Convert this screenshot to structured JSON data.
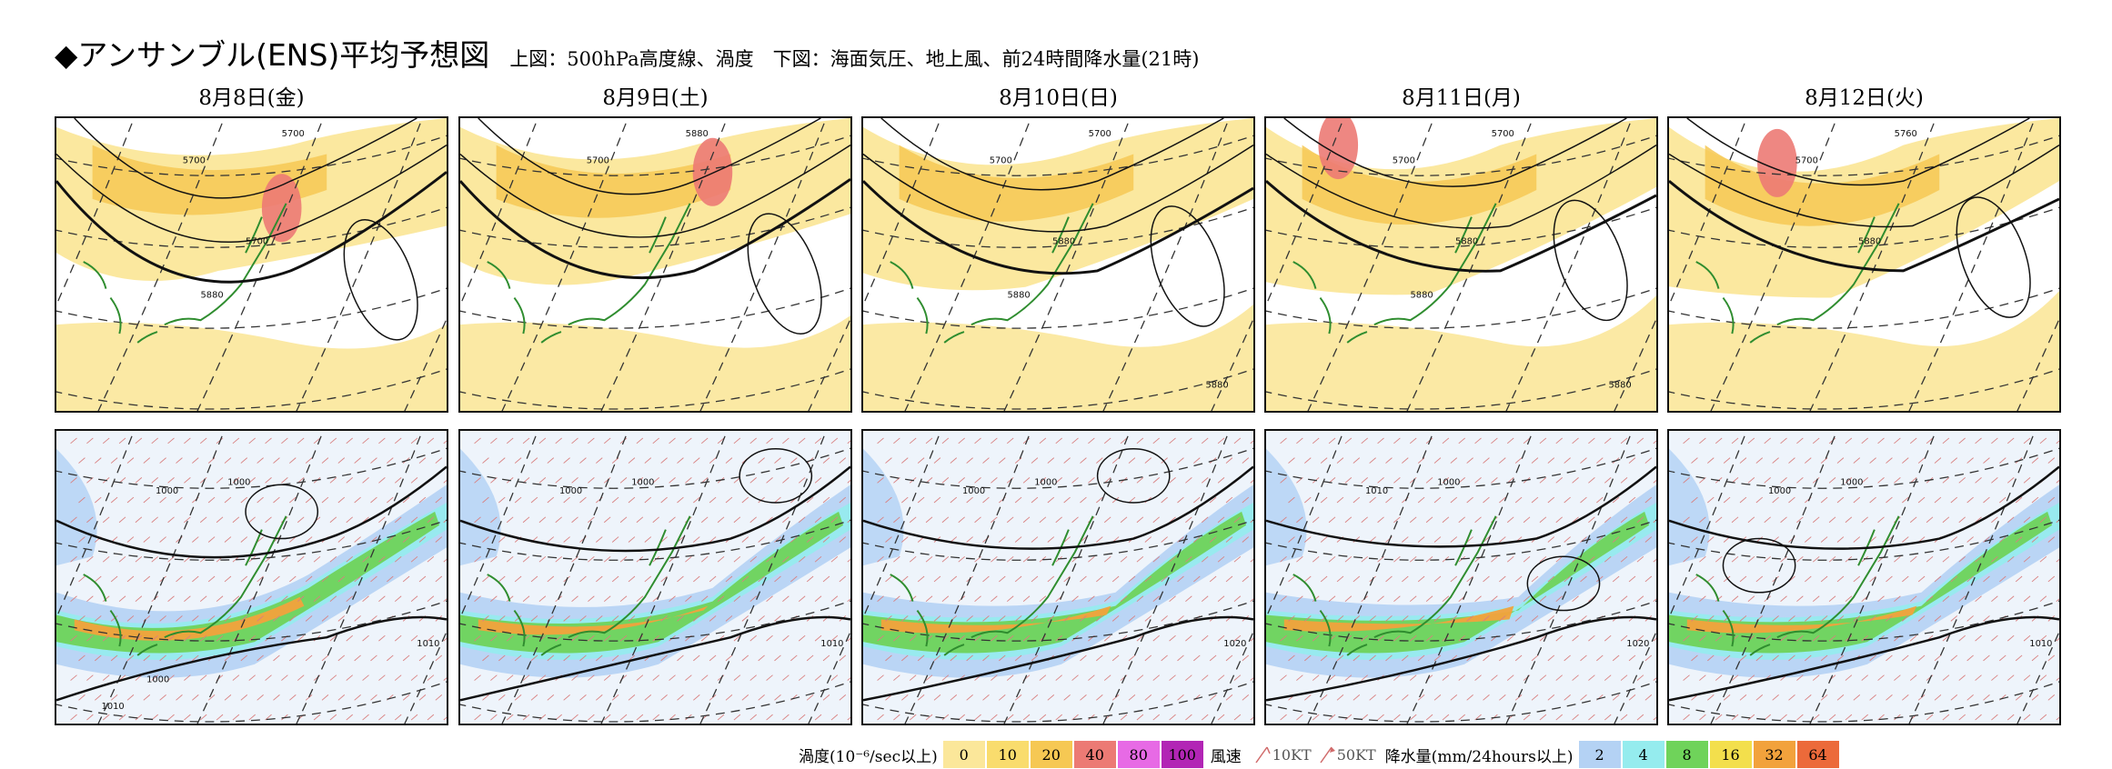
{
  "header": {
    "title": "◆アンサンブル(ENS)平均予想図",
    "subtitle": "上図：500hPa高度線、渦度　下図：海面気圧、地上風、前24時間降水量(21時)"
  },
  "panels": [
    {
      "date": "8月8日(金)",
      "upper_contours": [
        "5700",
        "5700",
        "5700",
        "5880"
      ],
      "lower_isobars": [
        "1000",
        "1000",
        "1010",
        "1000",
        "1010"
      ]
    },
    {
      "date": "8月9日(土)",
      "upper_contours": [
        "5700",
        "5880"
      ],
      "lower_isobars": [
        "1000",
        "1000",
        "1010"
      ]
    },
    {
      "date": "8月10日(日)",
      "upper_contours": [
        "5700",
        "5700",
        "5880",
        "5880",
        "5880"
      ],
      "lower_isobars": [
        "1000",
        "1000",
        "1020"
      ]
    },
    {
      "date": "8月11日(月)",
      "upper_contours": [
        "5700",
        "5700",
        "5880",
        "5880",
        "5880"
      ],
      "lower_isobars": [
        "1010",
        "1000",
        "1020"
      ]
    },
    {
      "date": "8月12日(火)",
      "upper_contours": [
        "5700",
        "5760",
        "5880"
      ],
      "lower_isobars": [
        "1000",
        "1000",
        "1010"
      ]
    }
  ],
  "legend": {
    "vorticity_label": "渦度(10⁻⁶/sec以上)",
    "vorticity": [
      {
        "value": "0",
        "color": "#fbe79a"
      },
      {
        "value": "10",
        "color": "#f9dc6d"
      },
      {
        "value": "20",
        "color": "#f6c853"
      },
      {
        "value": "40",
        "color": "#ec7a74"
      },
      {
        "value": "80",
        "color": "#e76ae5"
      },
      {
        "value": "100",
        "color": "#b225b5"
      }
    ],
    "wind_label": "風速",
    "wind_10": "10KT",
    "wind_50": "50KT",
    "precip_label": "降水量(mm/24hours以上)",
    "precip": [
      {
        "value": "2",
        "color": "#b4d2f4"
      },
      {
        "value": "4",
        "color": "#95ecee"
      },
      {
        "value": "8",
        "color": "#6fd35a"
      },
      {
        "value": "16",
        "color": "#f3df4c"
      },
      {
        "value": "32",
        "color": "#f2a23c"
      },
      {
        "value": "64",
        "color": "#ec6a3a"
      }
    ]
  }
}
